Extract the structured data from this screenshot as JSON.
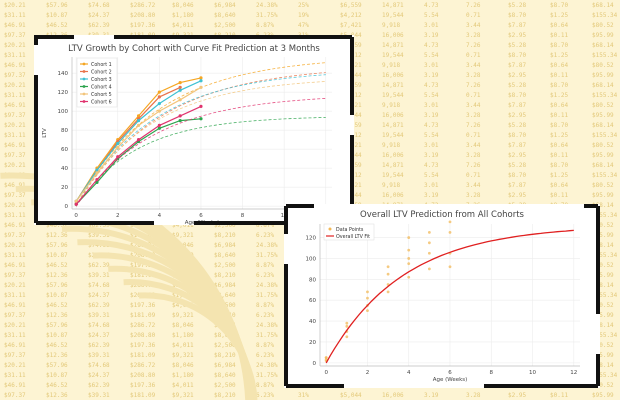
{
  "background": {
    "table_rows": [
      [
        "$20.21",
        "$57.96",
        "$74.68",
        "$286.72",
        "$8,046",
        "$6,984",
        "24.38%",
        "25%",
        "$6,559",
        "14,871",
        "4.73",
        "7.26",
        "$5.28",
        "$8.70",
        "$68.14"
      ],
      [
        "$31.11",
        "$10.87",
        "$24.37",
        "$208.80",
        "$1,180",
        "$8,640",
        "31.75%",
        "19%",
        "$4,212",
        "19,544",
        "5.54",
        "0.71",
        "$8.70",
        "$1.25",
        "$155.34"
      ],
      [
        "$46.91",
        "$46.52",
        "$62.39",
        "$197.36",
        "$4,011",
        "$2,500",
        "8.87%",
        "47%",
        "$7,421",
        "9,918",
        "3.01",
        "3.44",
        "$7.87",
        "$0.64",
        "$80.52"
      ],
      [
        "$97.37",
        "$12.36",
        "$39.31",
        "$181.09",
        "$9,321",
        "$8,210",
        "6.23%",
        "31%",
        "$5,044",
        "16,006",
        "3.19",
        "3.28",
        "$2.95",
        "$0.11",
        "$95.99"
      ]
    ],
    "colors": {
      "page": "#fdf4d3",
      "table_text": "#e3c97a"
    }
  },
  "charts": {
    "cohort": {
      "title": "LTV Growth by Cohort with Curve Fit Prediction at 3 Months",
      "xlabel": "Age (Weeks)",
      "ylabel": "LTV"
    },
    "overall": {
      "title": "Overall LTV Prediction from All Cohorts",
      "xlabel": "Age (Weeks)",
      "legend_points": "Data Points",
      "legend_fit": "Overall LTV Fit"
    }
  },
  "chart_data": [
    {
      "type": "line",
      "title": "LTV Growth by Cohort with Curve Fit Prediction at 3 Months",
      "xlabel": "Age (Weeks)",
      "ylabel": "LTV",
      "xlim": [
        -0.2,
        12.3
      ],
      "ylim": [
        -3,
        157
      ],
      "xticks": [
        0,
        2,
        4,
        6,
        8,
        10,
        12
      ],
      "xtick_labels": [
        "0",
        "2",
        "4",
        "6",
        "8",
        "10",
        "12"
      ],
      "yticks": [
        0,
        20,
        40,
        60,
        80,
        100,
        120,
        140
      ],
      "ytick_labels": [
        "0",
        "20",
        "40",
        "60",
        "80",
        "100",
        "120",
        "140"
      ],
      "grid": true,
      "legend_position": "top-left",
      "series": [
        {
          "name": "Cohort 1",
          "color": "#f5a623",
          "x": [
            0,
            1,
            2,
            3,
            4,
            5,
            6
          ],
          "y": [
            5,
            40,
            70,
            95,
            120,
            130,
            135
          ],
          "fit": {
            "a": 158,
            "b": 0.26
          }
        },
        {
          "name": "Cohort 2",
          "color": "#e8734a",
          "x": [
            0,
            1,
            2,
            3,
            4,
            5
          ],
          "y": [
            5,
            38,
            68,
            92,
            115,
            125
          ],
          "fit": {
            "a": 148,
            "b": 0.25
          }
        },
        {
          "name": "Cohort 3",
          "color": "#3ec1d3",
          "x": [
            0,
            1,
            2,
            3,
            4,
            5,
            6
          ],
          "y": [
            5,
            38,
            66,
            90,
            108,
            122,
            132
          ],
          "fit": {
            "a": 144,
            "b": 0.27
          }
        },
        {
          "name": "Cohort 4",
          "color": "#2da44e",
          "x": [
            0,
            1,
            2,
            3,
            4,
            5,
            6
          ],
          "y": [
            2,
            25,
            50,
            68,
            82,
            90,
            92
          ],
          "fit": {
            "a": 95,
            "b": 0.34
          }
        },
        {
          "name": "Cohort 5",
          "color": "#f2c57c",
          "x": [
            0,
            1,
            2,
            3,
            4,
            5,
            6
          ],
          "y": [
            5,
            35,
            62,
            85,
            100,
            112,
            125
          ],
          "fit": {
            "a": 136,
            "b": 0.28
          }
        },
        {
          "name": "Cohort 6",
          "color": "#e0336e",
          "x": [
            0,
            1,
            2,
            3,
            4,
            5,
            6
          ],
          "y": [
            2,
            28,
            52,
            70,
            85,
            95,
            105
          ],
          "fit": {
            "a": 118,
            "b": 0.27
          }
        }
      ]
    },
    {
      "type": "scatter",
      "title": "Overall LTV Prediction from All Cohorts",
      "xlabel": "Age (Weeks)",
      "xlim": [
        -0.3,
        12.3
      ],
      "ylim": [
        -3,
        133
      ],
      "xticks": [
        0,
        2,
        4,
        6,
        8,
        10,
        12
      ],
      "xtick_labels": [
        "0",
        "2",
        "4",
        "6",
        "8",
        "10",
        "12"
      ],
      "yticks": [
        0,
        20,
        40,
        60,
        80,
        100,
        120
      ],
      "ytick_labels": [
        "0",
        "20",
        "40",
        "60",
        "80",
        "100",
        "120"
      ],
      "grid": true,
      "legend_position": "top-left",
      "points": {
        "name": "Data Points",
        "color": "#f2b857",
        "x": [
          0,
          0,
          0,
          0,
          1,
          1,
          1,
          1,
          2,
          2,
          2,
          2,
          3,
          3,
          3,
          3,
          4,
          4,
          4,
          4,
          4,
          5,
          5,
          5,
          5,
          6,
          6,
          6,
          6
        ],
        "y": [
          2,
          3,
          5,
          5,
          25,
          30,
          35,
          38,
          50,
          55,
          62,
          68,
          68,
          75,
          85,
          92,
          82,
          95,
          100,
          108,
          120,
          90,
          105,
          115,
          125,
          92,
          105,
          125,
          135
        ]
      },
      "fit": {
        "name": "Overall LTV Fit",
        "color": "#e02020",
        "a": 132,
        "b": 0.27,
        "x_range": [
          0,
          12
        ]
      }
    }
  ]
}
